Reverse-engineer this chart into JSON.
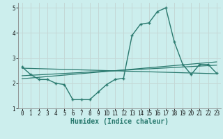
{
  "xlabel": "Humidex (Indice chaleur)",
  "background_color": "#cceeed",
  "grid_color": "#c4d8d6",
  "line_color": "#2a7a6f",
  "x_values": [
    0,
    1,
    2,
    3,
    4,
    5,
    6,
    7,
    8,
    9,
    10,
    11,
    12,
    13,
    14,
    15,
    16,
    17,
    18,
    19,
    20,
    21,
    22,
    23
  ],
  "main_y": [
    2.65,
    2.35,
    2.15,
    2.15,
    2.0,
    1.95,
    1.35,
    1.35,
    1.35,
    1.65,
    1.95,
    2.15,
    2.2,
    3.9,
    4.35,
    4.4,
    4.85,
    5.0,
    3.65,
    2.75,
    2.35,
    2.75,
    2.75,
    2.4
  ],
  "reg_lines": [
    [
      2.62,
      2.62,
      2.62,
      2.62,
      2.62,
      2.62,
      2.62,
      2.62,
      2.62,
      2.62,
      2.62,
      2.62,
      2.35,
      2.35,
      2.35,
      2.35,
      2.35,
      2.35,
      2.35,
      2.35,
      2.35,
      2.35,
      2.35,
      2.35
    ],
    [
      2.28,
      2.3,
      2.32,
      2.34,
      2.36,
      2.38,
      2.4,
      2.42,
      2.44,
      2.46,
      2.48,
      2.5,
      2.52,
      2.54,
      2.56,
      2.58,
      2.6,
      2.62,
      2.64,
      2.66,
      2.68,
      2.7,
      2.72,
      2.74
    ],
    [
      2.18,
      2.21,
      2.24,
      2.27,
      2.3,
      2.33,
      2.36,
      2.39,
      2.42,
      2.45,
      2.48,
      2.51,
      2.54,
      2.57,
      2.6,
      2.63,
      2.66,
      2.69,
      2.72,
      2.75,
      2.78,
      2.81,
      2.84,
      2.87
    ]
  ],
  "ylim": [
    1.0,
    5.2
  ],
  "xlim": [
    0,
    23
  ],
  "yticks": [
    1,
    2,
    3,
    4,
    5
  ],
  "xticks": [
    0,
    1,
    2,
    3,
    4,
    5,
    6,
    7,
    8,
    9,
    10,
    11,
    12,
    13,
    14,
    15,
    16,
    17,
    18,
    19,
    20,
    21,
    22,
    23
  ]
}
